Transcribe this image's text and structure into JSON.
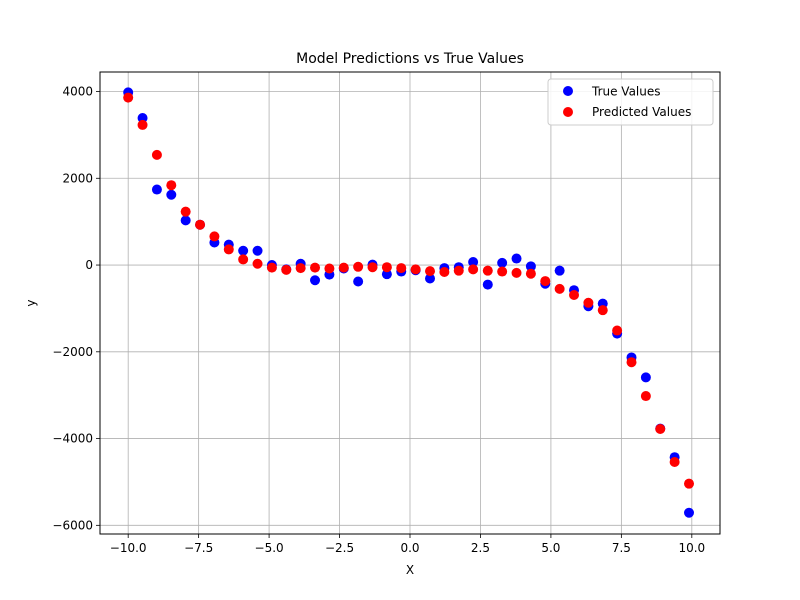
{
  "chart_data": {
    "type": "scatter",
    "title": "Model Predictions vs True Values",
    "xlabel": "X",
    "ylabel": "y",
    "xlim": [
      -11.0,
      11.0
    ],
    "ylim": [
      -6200,
      4450
    ],
    "xticks": [
      -10,
      -7.5,
      -5,
      -2.5,
      0,
      2.5,
      5,
      7.5,
      10
    ],
    "xtick_labels": [
      "−10.0",
      "−7.5",
      "−5.0",
      "−2.5",
      "0.0",
      "2.5",
      "5.0",
      "7.5",
      "10.0"
    ],
    "yticks": [
      -6000,
      -4000,
      -2000,
      0,
      2000,
      4000
    ],
    "ytick_labels": [
      "−6000",
      "−4000",
      "−2000",
      "0",
      "2000",
      "4000"
    ],
    "grid": true,
    "legend_position": "top-right",
    "series": [
      {
        "name": "True Values",
        "color": "#0000ff",
        "x": [
          -10.0,
          -9.49,
          -8.98,
          -8.47,
          -7.96,
          -7.45,
          -6.94,
          -6.43,
          -5.92,
          -5.41,
          -4.9,
          -4.39,
          -3.88,
          -3.37,
          -2.86,
          -2.35,
          -1.84,
          -1.33,
          -0.82,
          -0.31,
          0.2,
          0.71,
          1.22,
          1.73,
          2.24,
          2.76,
          3.27,
          3.78,
          4.29,
          4.8,
          5.31,
          5.82,
          6.33,
          6.84,
          7.35,
          7.86,
          8.37,
          8.88,
          9.39,
          9.9
        ],
        "y": [
          3980,
          3390,
          1740,
          1620,
          1030,
          930,
          520,
          470,
          330,
          330,
          0,
          -100,
          30,
          -350,
          -220,
          -80,
          -380,
          10,
          -210,
          -150,
          -120,
          -310,
          -70,
          -50,
          70,
          -450,
          50,
          150,
          -30,
          -430,
          -130,
          -580,
          -950,
          -890,
          -1580,
          -2130,
          -2590,
          -3770,
          -4430,
          -5710
        ]
      },
      {
        "name": "Predicted Values",
        "color": "#ff0000",
        "x": [
          -10.0,
          -9.49,
          -8.98,
          -8.47,
          -7.96,
          -7.45,
          -6.94,
          -6.43,
          -5.92,
          -5.41,
          -4.9,
          -4.39,
          -3.88,
          -3.37,
          -2.86,
          -2.35,
          -1.84,
          -1.33,
          -0.82,
          -0.31,
          0.2,
          0.71,
          1.22,
          1.73,
          2.24,
          2.76,
          3.27,
          3.78,
          4.29,
          4.8,
          5.31,
          5.82,
          6.33,
          6.84,
          7.35,
          7.86,
          8.37,
          8.88,
          9.39,
          9.9
        ],
        "y": [
          3860,
          3230,
          2540,
          1840,
          1230,
          930,
          660,
          360,
          130,
          30,
          -60,
          -110,
          -70,
          -60,
          -80,
          -60,
          -40,
          -50,
          -50,
          -70,
          -100,
          -140,
          -160,
          -130,
          -100,
          -130,
          -150,
          -180,
          -200,
          -370,
          -550,
          -690,
          -870,
          -1040,
          -1510,
          -2240,
          -3020,
          -3780,
          -4540,
          -5040
        ]
      }
    ]
  }
}
